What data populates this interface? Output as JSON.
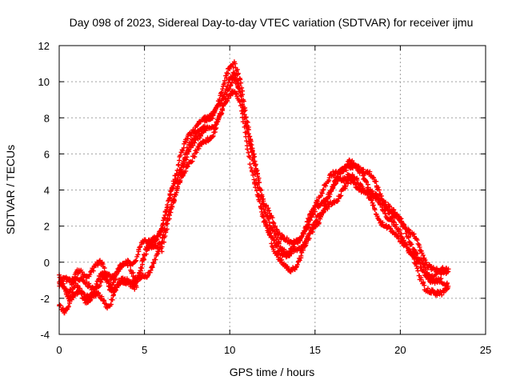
{
  "chart_data": {
    "type": "scatter",
    "title": "Day 098 of 2023, Sidereal Day-to-day VTEC variation (SDTVAR) for receiver ijmu",
    "xlabel": "GPS time / hours",
    "ylabel": "SDTVAR / TECUs",
    "xlim": [
      0,
      25
    ],
    "ylim": [
      -4,
      12
    ],
    "xticks": [
      0,
      5,
      10,
      15,
      20,
      25
    ],
    "yticks": [
      -4,
      -2,
      0,
      2,
      4,
      6,
      8,
      10,
      12
    ],
    "grid": true,
    "marker": "plus",
    "color": "#ff0000",
    "series_profile": {
      "x": [
        0.0,
        0.5,
        1.0,
        1.5,
        2.0,
        2.5,
        3.0,
        3.5,
        4.0,
        4.5,
        5.0,
        5.5,
        6.0,
        6.5,
        7.0,
        7.5,
        8.0,
        8.5,
        9.0,
        9.5,
        10.0,
        10.3,
        10.6,
        11.0,
        11.5,
        12.0,
        12.5,
        13.0,
        13.5,
        14.0,
        14.5,
        15.0,
        15.5,
        16.0,
        16.5,
        17.0,
        17.5,
        18.0,
        18.5,
        19.0,
        19.5,
        20.0,
        20.5,
        21.0,
        21.5,
        22.0,
        22.5,
        22.8
      ],
      "y": [
        -1.2,
        -1.5,
        -0.9,
        -1.3,
        -1.0,
        -0.7,
        -1.2,
        -0.6,
        -0.3,
        -0.5,
        0.5,
        1.2,
        1.5,
        3.5,
        5.0,
        6.3,
        7.2,
        7.6,
        7.9,
        9.0,
        10.2,
        10.6,
        9.8,
        7.5,
        5.2,
        3.0,
        1.8,
        1.0,
        0.6,
        1.0,
        1.8,
        2.8,
        3.6,
        4.3,
        4.9,
        5.3,
        5.0,
        4.6,
        3.9,
        3.2,
        2.6,
        2.1,
        1.4,
        0.5,
        -0.4,
        -0.8,
        -0.7,
        -0.6
      ]
    },
    "bands": 4
  }
}
